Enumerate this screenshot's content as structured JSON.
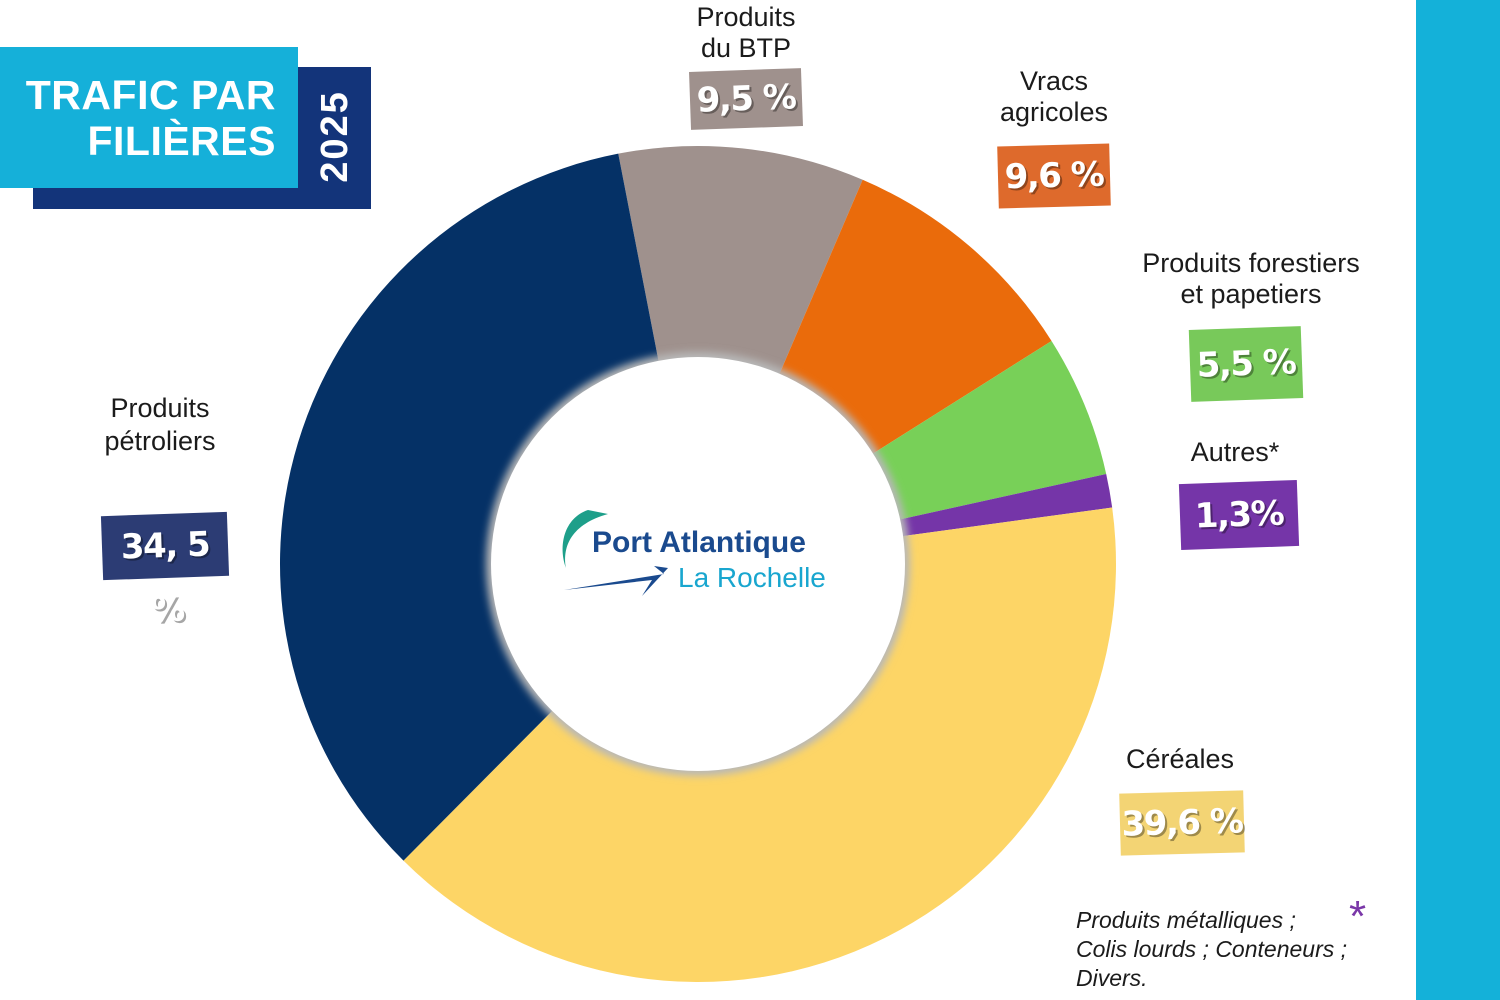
{
  "title": {
    "line1": "TRAFIC PAR",
    "line2": "FILIÈRES",
    "year": "2025"
  },
  "chart_data": {
    "type": "pie",
    "title": "TRAFIC PAR FILIÈRES 2025",
    "donut": true,
    "categories": [
      "Produits du BTP",
      "Vracs agricoles",
      "Produits forestiers et papetiers",
      "Autres*",
      "Céréales",
      "Produits pétroliers"
    ],
    "values": [
      9.5,
      9.6,
      5.5,
      1.3,
      39.6,
      34.5
    ],
    "colors": [
      "#9f918d",
      "#ea6b0b",
      "#78d058",
      "#7535a8",
      "#fdd566",
      "#053166"
    ],
    "value_labels": [
      "9,5 %",
      "9,6 %",
      "5,5 %",
      "1,3%",
      "39,6 %",
      "34, 5 %"
    ]
  },
  "labels": {
    "btp": [
      "Produits",
      "du BTP"
    ],
    "vracs": [
      "Vracs",
      "agricoles"
    ],
    "forestiers": [
      "Produits forestiers",
      "et papetiers"
    ],
    "autres": [
      "Autres*"
    ],
    "cereales": [
      "Céréales"
    ],
    "petroliers": [
      "Produits",
      "pétroliers"
    ]
  },
  "badge_colors": {
    "btp": "#9f918d",
    "vracs": "#de6a2c",
    "forestiers": "#78c95a",
    "autres": "#7535a8",
    "cereales": "#f3d474",
    "petroliers": "#2c3c74"
  },
  "logo": {
    "line1": "Port Atlantique",
    "line2": "La Rochelle"
  },
  "note": {
    "line1": "Produits métalliques ;",
    "line2": "Colis lourds ; Conteneurs ;",
    "line3": "Divers.",
    "asterisk": "*"
  }
}
